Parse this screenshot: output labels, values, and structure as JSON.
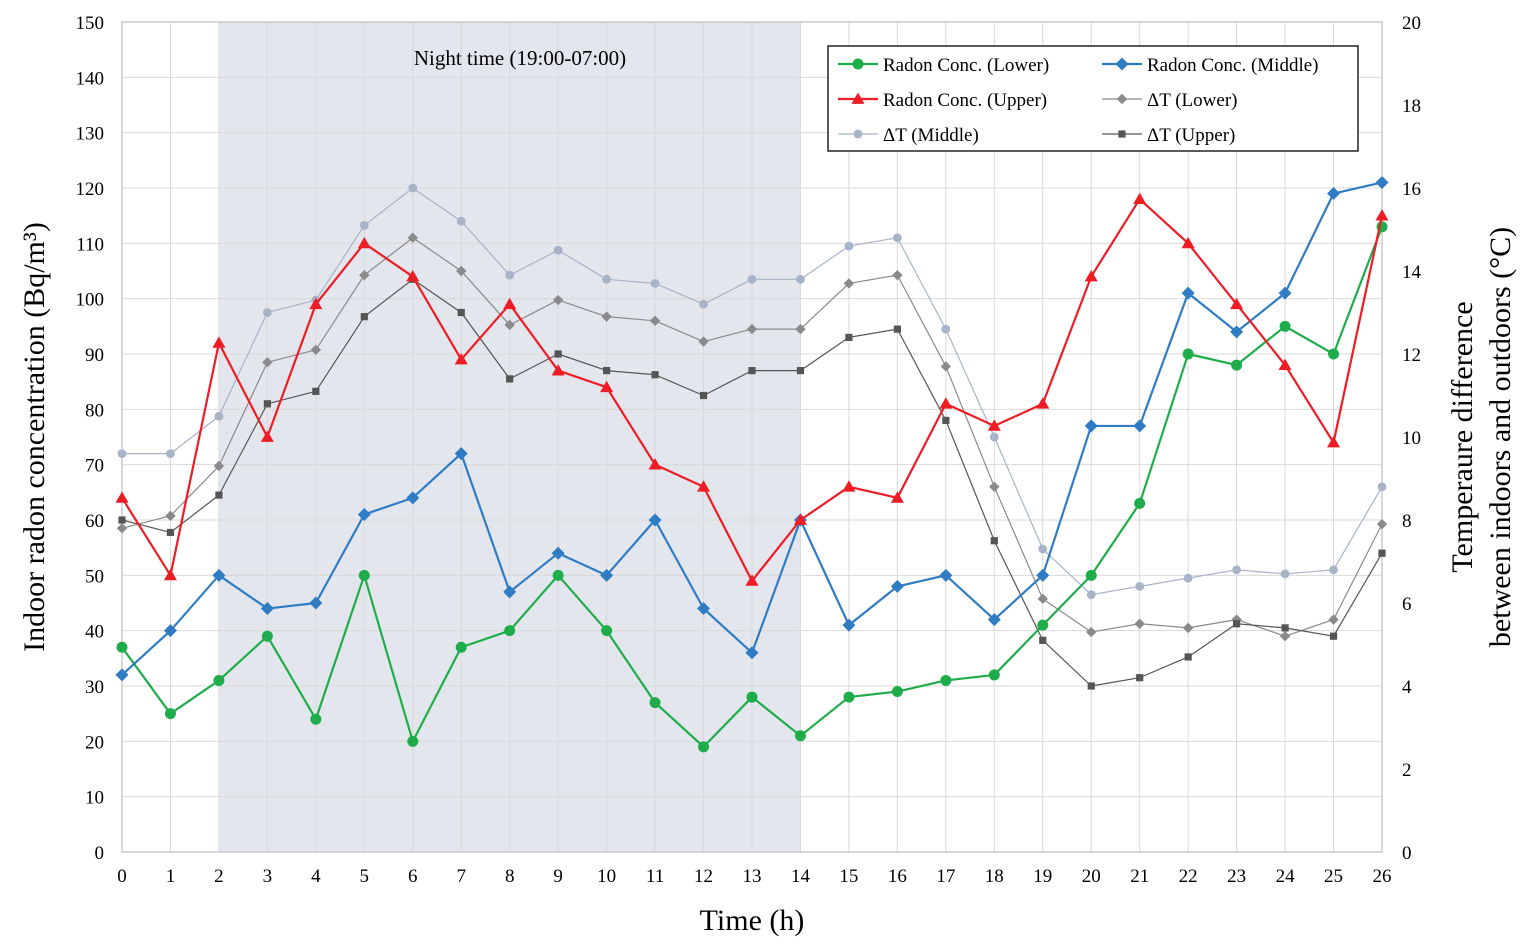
{
  "chart_data": {
    "type": "line",
    "annotation": "Night time  (19:00-07:00)",
    "night_band": [
      2,
      14
    ],
    "xlabel": "Time  (h)",
    "ylabel_left": "Indoor radon concentration  (Bq/m³)",
    "ylabel_right_line1": "Temperaure difference",
    "ylabel_right_line2": "between indoors and outdoors (°C)",
    "xlim": [
      0,
      26
    ],
    "ylim_left": [
      0,
      150
    ],
    "ylim_right": [
      0,
      20
    ],
    "x_ticks": [
      0,
      1,
      2,
      3,
      4,
      5,
      6,
      7,
      8,
      9,
      10,
      11,
      12,
      13,
      14,
      15,
      16,
      17,
      18,
      19,
      20,
      21,
      22,
      23,
      24,
      25,
      26
    ],
    "y_left_ticks": [
      0,
      10,
      20,
      30,
      40,
      50,
      60,
      70,
      80,
      90,
      100,
      110,
      120,
      130,
      140,
      150
    ],
    "y_right_ticks": [
      0,
      2,
      4,
      6,
      8,
      10,
      12,
      14,
      16,
      18,
      20
    ],
    "grid": "horizontal and vertical major gridlines",
    "legend_position": "top-right",
    "x": [
      0,
      1,
      2,
      3,
      4,
      5,
      6,
      7,
      8,
      9,
      10,
      11,
      12,
      13,
      14,
      15,
      16,
      17,
      18,
      19,
      20,
      21,
      22,
      23,
      24,
      25,
      26
    ],
    "series": [
      {
        "name": "Radon Conc. (Lower)",
        "axis": "left",
        "color": "#1fad4b",
        "marker": "circle",
        "width": 2.2,
        "values": [
          37,
          25,
          31,
          39,
          24,
          50,
          20,
          37,
          40,
          50,
          40,
          27,
          19,
          28,
          21,
          28,
          29,
          31,
          32,
          41,
          50,
          63,
          90,
          88,
          95,
          90,
          113
        ]
      },
      {
        "name": "Radon Conc. (Middle)",
        "axis": "left",
        "color": "#2f7cc4",
        "marker": "diamond",
        "width": 2.2,
        "values": [
          32,
          40,
          50,
          44,
          45,
          61,
          64,
          72,
          47,
          54,
          50,
          60,
          44,
          36,
          60,
          41,
          48,
          50,
          42,
          50,
          77,
          77,
          101,
          94,
          101,
          119,
          121
        ]
      },
      {
        "name": "Radon Conc. (Upper)",
        "axis": "left",
        "color": "#ee1c25",
        "marker": "triangle",
        "width": 2.2,
        "values": [
          64,
          50,
          92,
          75,
          99,
          110,
          104,
          89,
          99,
          87,
          84,
          70,
          66,
          49,
          60,
          66,
          64,
          81,
          77,
          81,
          104,
          118,
          110,
          99,
          88,
          74,
          115
        ]
      },
      {
        "name": "ΔT (Lower)",
        "axis": "right",
        "color": "#8a8a8a",
        "marker": "diamond",
        "width": 1.2,
        "values": [
          7.8,
          8.1,
          9.3,
          11.8,
          12.1,
          13.9,
          14.8,
          14.0,
          12.7,
          13.3,
          12.9,
          12.8,
          12.3,
          12.6,
          12.6,
          13.7,
          13.9,
          11.7,
          8.8,
          6.1,
          5.3,
          5.5,
          5.4,
          5.6,
          5.2,
          5.6,
          7.9
        ]
      },
      {
        "name": "ΔT (Middle)",
        "axis": "right",
        "color": "#a8b3c8",
        "marker": "circle",
        "width": 1.2,
        "values": [
          9.6,
          9.6,
          10.5,
          13.0,
          13.3,
          15.1,
          16.0,
          15.2,
          13.9,
          14.5,
          13.8,
          13.7,
          13.2,
          13.8,
          13.8,
          14.6,
          14.8,
          12.6,
          10.0,
          7.3,
          6.2,
          6.4,
          6.6,
          6.8,
          6.7,
          6.8,
          8.8
        ]
      },
      {
        "name": "ΔT (Upper)",
        "axis": "right",
        "color": "#555555",
        "marker": "square",
        "width": 1.2,
        "values": [
          8.0,
          7.7,
          8.6,
          10.8,
          11.1,
          12.9,
          13.8,
          13.0,
          11.4,
          12.0,
          11.6,
          11.5,
          11.0,
          11.6,
          11.6,
          12.4,
          12.6,
          10.4,
          7.5,
          5.1,
          4.0,
          4.2,
          4.7,
          5.5,
          5.4,
          5.2,
          7.2
        ]
      }
    ]
  }
}
